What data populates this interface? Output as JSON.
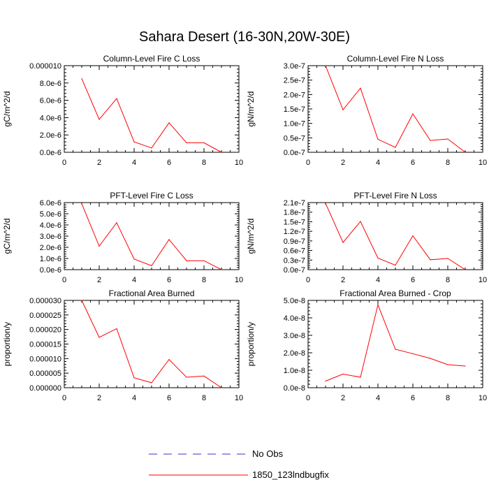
{
  "title": "Sahara Desert (16-30N,20W-30E)",
  "colors": {
    "model_line": "#ff0000",
    "obs_line": "#3333cc",
    "axis": "#000000"
  },
  "legend": [
    {
      "label": "No Obs",
      "style": "dashed",
      "color": "#3333cc"
    },
    {
      "label": "1850_123lndbugfix",
      "style": "solid",
      "color": "#ff0000"
    }
  ],
  "chart_data": [
    {
      "type": "line",
      "title": "Column-Level Fire C Loss",
      "ylabel": "gC/m^2/d",
      "xlim": [
        0,
        10
      ],
      "ylim": [
        0,
        1e-05
      ],
      "xticks": [
        0,
        2,
        4,
        6,
        8,
        10
      ],
      "yticks": [
        0,
        2e-06,
        4e-06,
        6e-06,
        8e-06,
        1e-05
      ],
      "ytick_labels": [
        "0.0e-6",
        "2.0e-6",
        "4.0e-6",
        "6.0e-6",
        "8.0e-6",
        "0.000010"
      ],
      "series": [
        {
          "name": "1850_123lndbugfix",
          "x": [
            1,
            2,
            3,
            4,
            5,
            6,
            7,
            8,
            9
          ],
          "values": [
            8.5e-06,
            3.8e-06,
            6.2e-06,
            1.2e-06,
            5e-07,
            3.4e-06,
            1.1e-06,
            1.1e-06,
            0.0
          ]
        }
      ]
    },
    {
      "type": "line",
      "title": "Column-Level Fire N Loss",
      "ylabel": "gN/m^2/d",
      "xlim": [
        0,
        10
      ],
      "ylim": [
        0,
        3e-07
      ],
      "xticks": [
        0,
        2,
        4,
        6,
        8,
        10
      ],
      "yticks": [
        0,
        5e-08,
        1e-07,
        1.5e-07,
        2e-07,
        2.5e-07,
        3e-07
      ],
      "ytick_labels": [
        "0.0e-7",
        "0.5e-7",
        "1.0e-7",
        "1.5e-7",
        "2.0e-7",
        "2.5e-7",
        "3.0e-7"
      ],
      "series": [
        {
          "name": "1850_123lndbugfix",
          "x": [
            1,
            2,
            3,
            4,
            5,
            6,
            7,
            8,
            9
          ],
          "values": [
            3e-07,
            1.47e-07,
            2.22e-07,
            4.5e-08,
            1.7e-08,
            1.33e-07,
            4.1e-08,
            4.6e-08,
            0.0
          ]
        }
      ]
    },
    {
      "type": "line",
      "title": "PFT-Level Fire C Loss",
      "ylabel": "gC/m^2/d",
      "xlim": [
        0,
        10
      ],
      "ylim": [
        0,
        6e-06
      ],
      "xticks": [
        0,
        2,
        4,
        6,
        8,
        10
      ],
      "yticks": [
        0,
        1e-06,
        2e-06,
        3e-06,
        4e-06,
        5e-06,
        6e-06
      ],
      "ytick_labels": [
        "0.0e-6",
        "1.0e-6",
        "2.0e-6",
        "3.0e-6",
        "4.0e-6",
        "5.0e-6",
        "6.0e-6"
      ],
      "series": [
        {
          "name": "1850_123lndbugfix",
          "x": [
            1,
            2,
            3,
            4,
            5,
            6,
            7,
            8,
            9
          ],
          "values": [
            5.9e-06,
            2.1e-06,
            4.2e-06,
            9.5e-07,
            3.5e-07,
            2.7e-06,
            8e-07,
            8e-07,
            0.0
          ]
        }
      ]
    },
    {
      "type": "line",
      "title": "PFT-Level Fire N Loss",
      "ylabel": "gN/m^2/d",
      "xlim": [
        0,
        10
      ],
      "ylim": [
        0,
        2.1e-07
      ],
      "xticks": [
        0,
        2,
        4,
        6,
        8,
        10
      ],
      "yticks": [
        0,
        3e-08,
        6e-08,
        9e-08,
        1.2e-07,
        1.5e-07,
        1.8e-07,
        2.1e-07
      ],
      "ytick_labels": [
        "0.0e-7",
        "0.3e-7",
        "0.6e-7",
        "0.9e-7",
        "1.2e-7",
        "1.5e-7",
        "1.8e-7",
        "2.1e-7"
      ],
      "series": [
        {
          "name": "1850_123lndbugfix",
          "x": [
            1,
            2,
            3,
            4,
            5,
            6,
            7,
            8,
            9
          ],
          "values": [
            2.08e-07,
            8.5e-08,
            1.51e-07,
            3.6e-08,
            1.4e-08,
            1.06e-07,
            3.1e-08,
            3.5e-08,
            0.0
          ]
        }
      ]
    },
    {
      "type": "line",
      "title": "Fractional Area Burned",
      "ylabel": "proportion/y",
      "xlim": [
        0,
        10
      ],
      "ylim": [
        0,
        3e-05
      ],
      "xticks": [
        0,
        2,
        4,
        6,
        8,
        10
      ],
      "yticks": [
        0,
        5e-06,
        1e-05,
        1.5e-05,
        2e-05,
        2.5e-05,
        3e-05
      ],
      "ytick_labels": [
        "0.000000",
        "0.000005",
        "0.000010",
        "0.000015",
        "0.000020",
        "0.000025",
        "0.000030"
      ],
      "series": [
        {
          "name": "1850_123lndbugfix",
          "x": [
            1,
            2,
            3,
            4,
            5,
            6,
            7,
            8,
            9
          ],
          "values": [
            3e-05,
            1.73e-05,
            2.03e-05,
            3.4e-06,
            1.7e-06,
            9.7e-06,
            3.6e-06,
            4e-06,
            0.0
          ]
        }
      ]
    },
    {
      "type": "line",
      "title": "Fractional Area Burned - Crop",
      "ylabel": "proportion/y",
      "xlim": [
        0,
        10
      ],
      "ylim": [
        0,
        5e-08
      ],
      "xticks": [
        0,
        2,
        4,
        6,
        8,
        10
      ],
      "yticks": [
        0,
        1e-08,
        2e-08,
        3e-08,
        4e-08,
        5e-08
      ],
      "ytick_labels": [
        "0.0e-8",
        "1.0e-8",
        "2.0e-8",
        "3.0e-8",
        "4.0e-8",
        "5.0e-8"
      ],
      "series": [
        {
          "name": "1850_123lndbugfix",
          "x": [
            1,
            2,
            3,
            4,
            5,
            6,
            7,
            8,
            9
          ],
          "values": [
            3.8e-09,
            7.8e-09,
            6e-09,
            4.75e-08,
            2.2e-08,
            1.95e-08,
            1.68e-08,
            1.32e-08,
            1.24e-08
          ]
        }
      ]
    }
  ]
}
